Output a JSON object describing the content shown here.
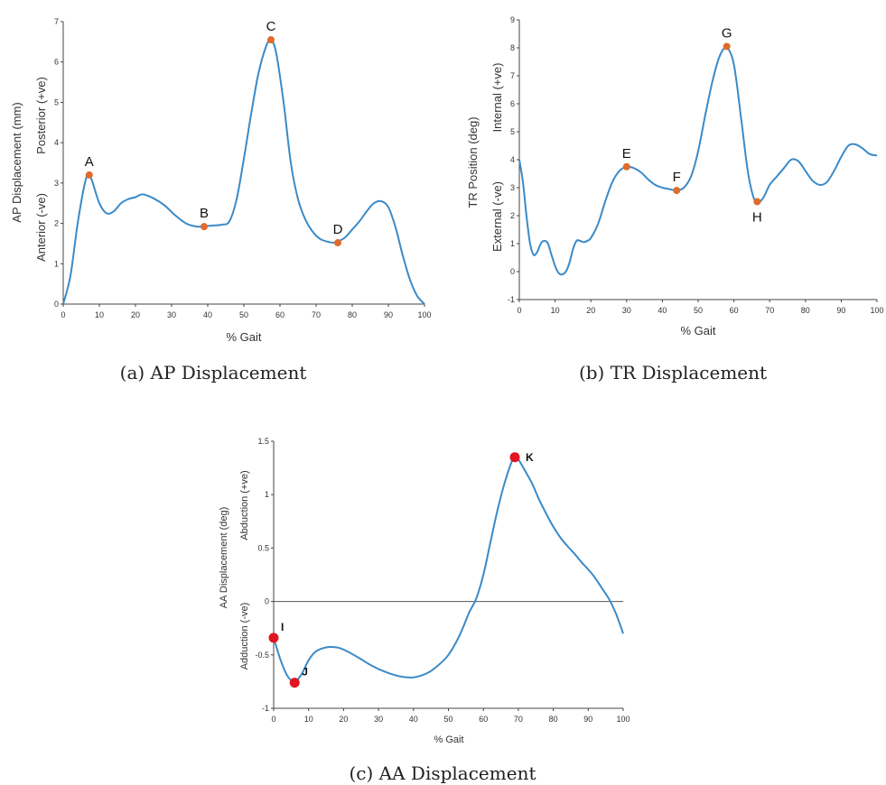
{
  "chart_data": [
    {
      "id": "ap",
      "type": "line",
      "caption": "(a) AP Displacement",
      "xlabel": "% Gait",
      "ylabel": "AP Displacement (mm)",
      "ylabel_pos": "Posterior (+ve)",
      "ylabel_neg": "Anterior (-ve)",
      "xlim": [
        0,
        100
      ],
      "ylim": [
        0,
        7
      ],
      "xticks": [
        0,
        10,
        20,
        30,
        40,
        50,
        60,
        70,
        80,
        90,
        100
      ],
      "yticks": [
        0,
        1,
        2,
        3,
        4,
        5,
        6,
        7
      ],
      "zero_line": false,
      "series": [
        {
          "x": [
            0,
            2,
            4,
            6,
            7,
            8,
            10,
            12,
            14,
            16,
            18,
            20,
            22,
            25,
            28,
            31,
            34,
            37,
            39,
            42,
            44,
            46,
            48,
            50,
            52,
            54,
            56,
            57.5,
            59,
            61,
            63,
            65,
            67,
            69,
            71,
            73,
            75,
            76,
            78,
            80,
            82,
            84,
            86,
            88,
            90,
            92,
            94,
            96,
            98,
            100
          ],
          "y": [
            0.0,
            0.7,
            2.0,
            3.0,
            3.2,
            3.05,
            2.5,
            2.25,
            2.3,
            2.5,
            2.6,
            2.65,
            2.72,
            2.62,
            2.45,
            2.2,
            2.0,
            1.92,
            1.93,
            1.95,
            1.97,
            2.05,
            2.6,
            3.6,
            4.7,
            5.7,
            6.35,
            6.55,
            6.2,
            5.0,
            3.5,
            2.6,
            2.1,
            1.8,
            1.62,
            1.55,
            1.52,
            1.55,
            1.65,
            1.85,
            2.05,
            2.3,
            2.5,
            2.55,
            2.4,
            1.9,
            1.2,
            0.6,
            0.2,
            0.0
          ]
        }
      ],
      "annotations": [
        {
          "label": "A",
          "x": 7.2,
          "y": 3.2,
          "offset": "above",
          "color": "#e06b2c"
        },
        {
          "label": "B",
          "x": 39,
          "y": 1.92,
          "offset": "above",
          "color": "#e06b2c"
        },
        {
          "label": "C",
          "x": 57.5,
          "y": 6.55,
          "offset": "above",
          "color": "#e06b2c"
        },
        {
          "label": "D",
          "x": 76,
          "y": 1.52,
          "offset": "above",
          "color": "#e06b2c"
        }
      ]
    },
    {
      "id": "tr",
      "type": "line",
      "caption": "(b) TR Displacement",
      "xlabel": "% Gait",
      "ylabel": "TR Position (deg)",
      "ylabel_pos": "Internal (+ve)",
      "ylabel_neg": "External (-ve)",
      "xlim": [
        0,
        100
      ],
      "ylim": [
        -1,
        9
      ],
      "xticks": [
        0,
        10,
        20,
        30,
        40,
        50,
        60,
        70,
        80,
        90,
        100
      ],
      "yticks": [
        -1,
        0,
        1,
        2,
        3,
        4,
        5,
        6,
        7,
        8,
        9
      ],
      "zero_line": false,
      "series": [
        {
          "x": [
            0,
            1,
            2,
            3,
            4,
            5,
            6,
            7,
            8,
            9,
            10,
            11,
            12,
            13,
            14,
            15,
            16,
            17,
            18,
            19,
            20,
            22,
            24,
            26,
            28,
            30,
            32,
            34,
            36,
            38,
            40,
            42,
            44,
            46,
            48,
            50,
            52,
            54,
            56,
            58,
            60,
            62,
            64,
            66,
            68,
            70,
            72,
            74,
            76,
            78,
            80,
            82,
            84,
            86,
            88,
            90,
            92,
            94,
            96,
            98,
            100
          ],
          "y": [
            4.0,
            3.2,
            2.0,
            1.0,
            0.6,
            0.7,
            1.0,
            1.1,
            1.0,
            0.6,
            0.2,
            -0.05,
            -0.1,
            0.0,
            0.3,
            0.8,
            1.1,
            1.1,
            1.05,
            1.1,
            1.2,
            1.7,
            2.5,
            3.2,
            3.6,
            3.75,
            3.7,
            3.55,
            3.3,
            3.1,
            3.0,
            2.95,
            2.9,
            3.0,
            3.4,
            4.3,
            5.6,
            6.8,
            7.7,
            8.0,
            7.4,
            5.5,
            3.5,
            2.5,
            2.6,
            3.1,
            3.4,
            3.7,
            4.0,
            3.95,
            3.6,
            3.25,
            3.1,
            3.2,
            3.6,
            4.1,
            4.5,
            4.55,
            4.4,
            4.2,
            4.15
          ]
        }
      ],
      "annotations": [
        {
          "label": "E",
          "x": 30,
          "y": 3.75,
          "offset": "above",
          "color": "#e06b2c"
        },
        {
          "label": "F",
          "x": 44,
          "y": 2.9,
          "offset": "above",
          "color": "#e06b2c"
        },
        {
          "label": "G",
          "x": 58,
          "y": 8.05,
          "offset": "above",
          "color": "#e06b2c"
        },
        {
          "label": "H",
          "x": 66.5,
          "y": 2.5,
          "offset": "below",
          "color": "#e06b2c"
        }
      ]
    },
    {
      "id": "aa",
      "type": "line",
      "caption": "(c) AA Displacement",
      "xlabel": "% Gait",
      "ylabel": "AA Displacement (deg)",
      "ylabel_pos": "Abduction (+ve)",
      "ylabel_neg": "Adduction (-ve)",
      "xlim": [
        0,
        100
      ],
      "ylim": [
        -1,
        1.5
      ],
      "xticks": [
        0,
        10,
        20,
        30,
        40,
        50,
        60,
        70,
        80,
        90,
        100
      ],
      "yticks": [
        -1,
        -0.5,
        0,
        0.5,
        1,
        1.5
      ],
      "zero_line": true,
      "series": [
        {
          "x": [
            0,
            2,
            4,
            6,
            8,
            10,
            12,
            15,
            18,
            20,
            24,
            28,
            32,
            36,
            40,
            44,
            47,
            50,
            53,
            56,
            58,
            60,
            62,
            64,
            66,
            68,
            69,
            70,
            72,
            74,
            76,
            78,
            80,
            82,
            84,
            86,
            88,
            90,
            92,
            94,
            96,
            98,
            100
          ],
          "y": [
            -0.34,
            -0.55,
            -0.7,
            -0.75,
            -0.68,
            -0.55,
            -0.47,
            -0.43,
            -0.43,
            -0.45,
            -0.52,
            -0.6,
            -0.66,
            -0.7,
            -0.71,
            -0.67,
            -0.6,
            -0.5,
            -0.33,
            -0.1,
            0.03,
            0.25,
            0.55,
            0.85,
            1.1,
            1.3,
            1.35,
            1.33,
            1.22,
            1.1,
            0.95,
            0.82,
            0.7,
            0.6,
            0.52,
            0.45,
            0.37,
            0.3,
            0.22,
            0.12,
            0.02,
            -0.12,
            -0.3
          ]
        }
      ],
      "annotations": [
        {
          "label": "I",
          "x": 0,
          "y": -0.34,
          "offset": "upright",
          "color": "#e0161e"
        },
        {
          "label": "J",
          "x": 6,
          "y": -0.76,
          "offset": "upright",
          "color": "#e0161e"
        },
        {
          "label": "K",
          "x": 69,
          "y": 1.35,
          "offset": "right",
          "color": "#e0161e"
        }
      ]
    }
  ]
}
